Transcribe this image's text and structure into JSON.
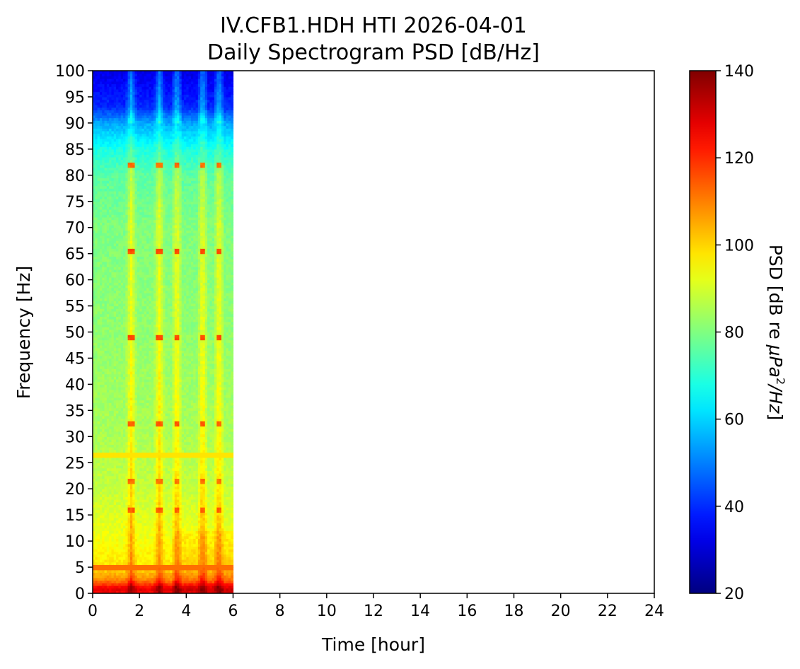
{
  "chart_data": {
    "type": "heatmap",
    "title_line1": "IV.CFB1.HDH HTI 2026-04-01",
    "title_line2": "Daily Spectrogram PSD [dB/Hz]",
    "xlabel": "Time [hour]",
    "ylabel": "Frequency [Hz]",
    "colorbar_label_prefix": "PSD [dB re ",
    "colorbar_label_unit": "μPa",
    "colorbar_label_exp": "2",
    "colorbar_label_suffix": "/Hz",
    "colorbar_label_close": "]",
    "xlim": [
      0,
      24
    ],
    "ylim": [
      0,
      100
    ],
    "clim": [
      20,
      140
    ],
    "colormap": "jet",
    "x_ticks": [
      0,
      2,
      4,
      6,
      8,
      10,
      12,
      14,
      16,
      18,
      20,
      22,
      24
    ],
    "y_ticks": [
      0,
      5,
      10,
      15,
      20,
      25,
      30,
      35,
      40,
      45,
      50,
      55,
      60,
      65,
      70,
      75,
      80,
      85,
      90,
      95,
      100
    ],
    "colorbar_ticks": [
      20,
      40,
      60,
      80,
      100,
      120,
      140
    ],
    "data_extent_hours": [
      0,
      6
    ],
    "psd_profile": [
      {
        "freq": 0,
        "psd": 125
      },
      {
        "freq": 1,
        "psd": 128
      },
      {
        "freq": 2.5,
        "psd": 110
      },
      {
        "freq": 5,
        "psd": 98
      },
      {
        "freq": 10,
        "psd": 94
      },
      {
        "freq": 20,
        "psd": 88
      },
      {
        "freq": 30,
        "psd": 85
      },
      {
        "freq": 50,
        "psd": 82
      },
      {
        "freq": 70,
        "psd": 80
      },
      {
        "freq": 80,
        "psd": 76
      },
      {
        "freq": 85,
        "psd": 68
      },
      {
        "freq": 90,
        "psd": 55
      },
      {
        "freq": 93,
        "psd": 40
      },
      {
        "freq": 100,
        "psd": 32
      }
    ],
    "vessel_passages_hours": [
      1.65,
      2.85,
      3.6,
      4.7,
      5.4
    ],
    "tonal_lines": [
      {
        "freq": 16,
        "psd": 112
      },
      {
        "freq": 21.5,
        "psd": 110
      },
      {
        "freq": 32.5,
        "psd": 112
      },
      {
        "freq": 49,
        "psd": 114
      },
      {
        "freq": 65.5,
        "psd": 114
      },
      {
        "freq": 82,
        "psd": 110
      }
    ],
    "stationary_lines": [
      {
        "freq": 4.8,
        "psd": 112
      },
      {
        "freq": 26.5,
        "psd": 98
      }
    ]
  }
}
